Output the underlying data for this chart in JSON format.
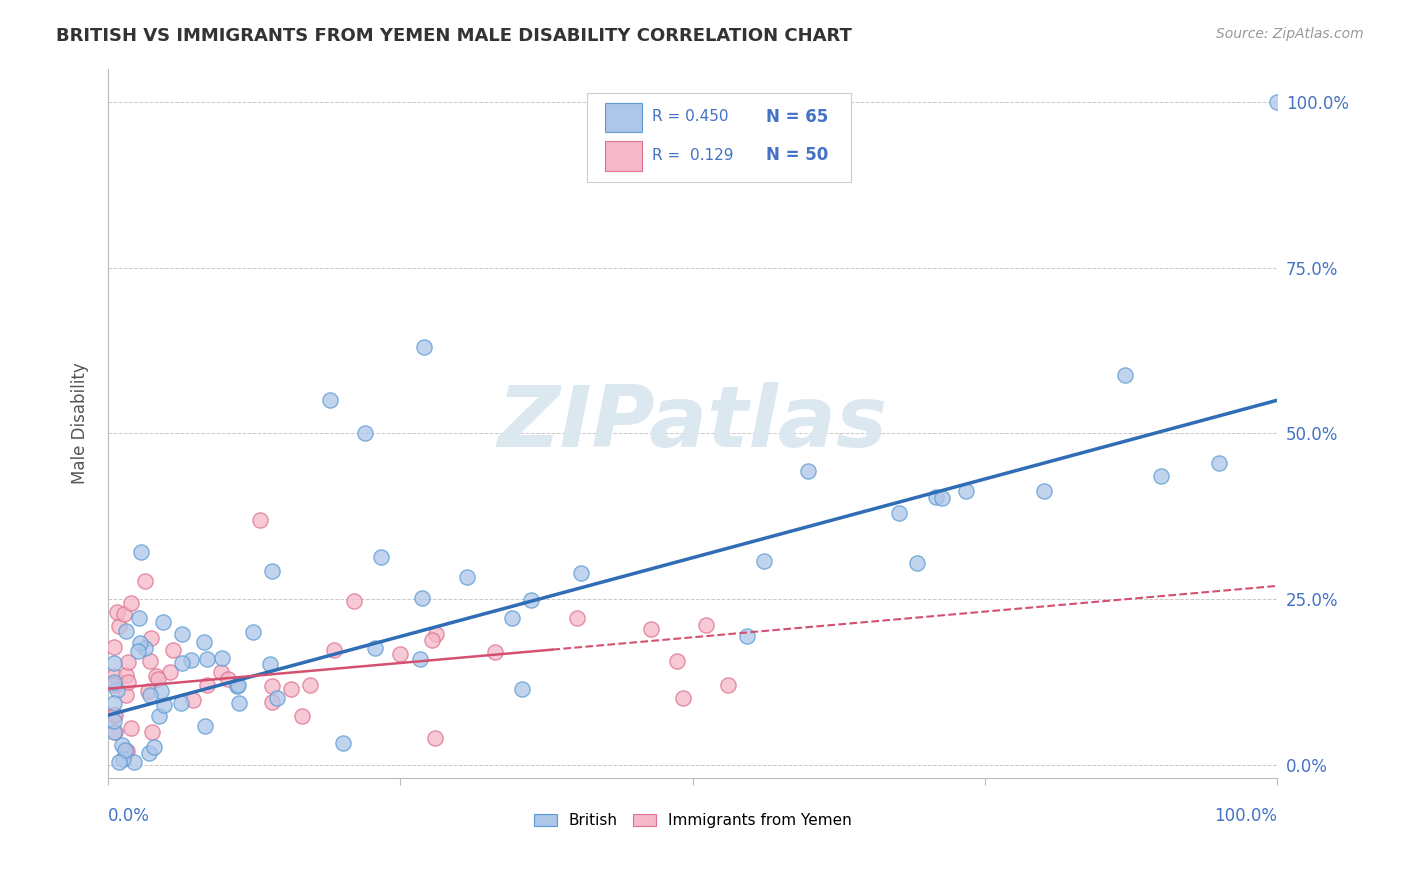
{
  "title": "BRITISH VS IMMIGRANTS FROM YEMEN MALE DISABILITY CORRELATION CHART",
  "source": "Source: ZipAtlas.com",
  "ylabel": "Male Disability",
  "ytick_labels": [
    "0.0%",
    "25.0%",
    "50.0%",
    "75.0%",
    "100.0%"
  ],
  "ytick_values": [
    0.0,
    0.25,
    0.5,
    0.75,
    1.0
  ],
  "xlim": [
    0.0,
    1.0
  ],
  "ylim": [
    -0.02,
    1.05
  ],
  "legend_R_british": "R = 0.450",
  "legend_N_british": "N = 65",
  "legend_R_yemen": "R =  0.129",
  "legend_N_yemen": "N = 50",
  "british_face_color": "#aec6e8",
  "british_edge_color": "#5b9bd5",
  "british_line_color": "#2f6db5",
  "yemen_face_color": "#f4b8c8",
  "yemen_edge_color": "#e07090",
  "yemen_line_color": "#d45070",
  "watermark_color": "#dce8f0",
  "background_color": "#ffffff",
  "grid_color": "#c8c8c8",
  "title_color": "#333333",
  "source_color": "#999999",
  "axis_label_color": "#4472c4",
  "ylabel_color": "#555555",
  "british_line_intercept": 0.075,
  "british_line_slope": 0.475,
  "yemen_line_intercept": 0.115,
  "yemen_line_slope": 0.155
}
